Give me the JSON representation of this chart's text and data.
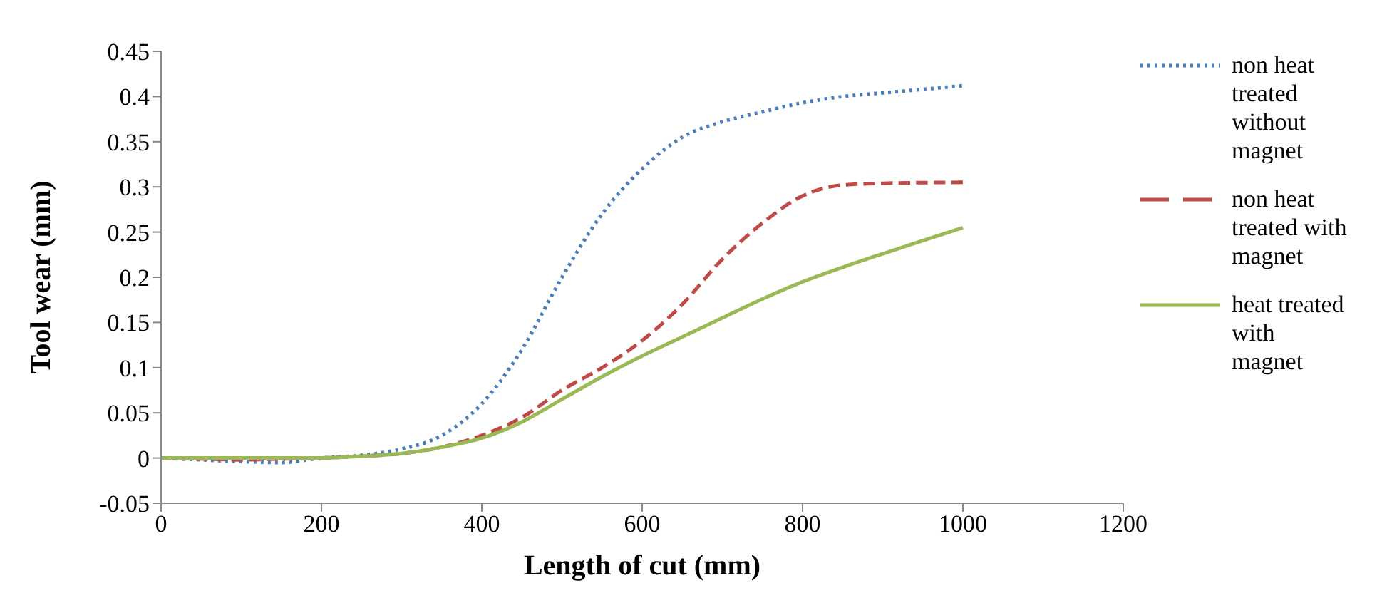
{
  "chart_data": {
    "type": "line",
    "xlabel": "Length of cut (mm)",
    "ylabel": "Tool wear (mm)",
    "xlim": [
      0,
      1200
    ],
    "xticks": [
      0,
      200,
      400,
      600,
      800,
      1000,
      1200
    ],
    "ylim": [
      -0.05,
      0.45
    ],
    "yticks": [
      -0.05,
      0,
      0.05,
      0.1,
      0.15,
      0.2,
      0.25,
      0.3,
      0.35,
      0.4,
      0.45
    ],
    "grid": false,
    "legend": "right",
    "marker": "none",
    "x": [
      0,
      50,
      100,
      150,
      200,
      250,
      300,
      350,
      400,
      450,
      500,
      550,
      600,
      650,
      700,
      750,
      800,
      850,
      900,
      1000
    ],
    "series": [
      {
        "name": "non heat treated without magnet",
        "color": "#4a7ebb",
        "line_style": "dotted",
        "values": [
          0,
          -0.002,
          -0.004,
          -0.005,
          0,
          0.003,
          0.01,
          0.025,
          0.06,
          0.12,
          0.2,
          0.27,
          0.32,
          0.355,
          0.372,
          0.383,
          0.393,
          0.4,
          0.404,
          0.412
        ]
      },
      {
        "name": "non heat treated with magnet",
        "color": "#be4b48",
        "line_style": "dashed",
        "values": [
          0,
          -0.001,
          -0.002,
          -0.001,
          0,
          0.002,
          0.005,
          0.012,
          0.025,
          0.045,
          0.075,
          0.1,
          0.13,
          0.17,
          0.22,
          0.26,
          0.29,
          0.302,
          0.304,
          0.305
        ]
      },
      {
        "name": "heat treated with magnet",
        "color": "#98b954",
        "line_style": "solid",
        "values": [
          0,
          0,
          0,
          0,
          0,
          0.002,
          0.005,
          0.012,
          0.022,
          0.04,
          0.065,
          0.09,
          0.113,
          0.134,
          0.155,
          0.176,
          0.195,
          0.211,
          0.226,
          0.255
        ]
      }
    ]
  }
}
